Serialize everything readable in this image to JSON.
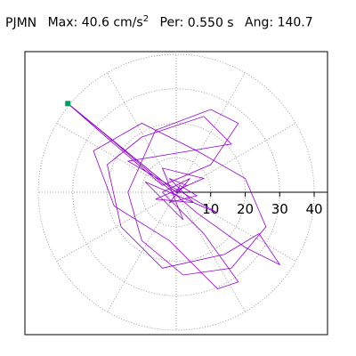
{
  "header": {
    "station": "PJMN",
    "max_label": "Max:",
    "max_value": "40.6",
    "max_unit": "cm/s",
    "max_unit_exp": "2",
    "per_label": "Per:",
    "per_value": "0.550 s",
    "ang_label": "Ang:",
    "ang_value": "140.7"
  },
  "chart_data": {
    "type": "line",
    "projection": "polar",
    "r_max": 40,
    "grid": true,
    "ticks": [
      10,
      20,
      30,
      40
    ],
    "tick_labels": [
      "10",
      "20",
      "30",
      "40"
    ],
    "peak": {
      "magnitude": 40.6,
      "angle_deg": 140.7
    },
    "colors": {
      "trace": "#9400d3",
      "peak_marker": "#009966",
      "grid": "#888888"
    },
    "series": [
      {
        "values": [
          {
            "x": 0,
            "y": 0
          },
          {
            "x": 3,
            "y": 2
          },
          {
            "x": -2,
            "y": 4
          },
          {
            "x": 5,
            "y": -3
          },
          {
            "x": -6,
            "y": -2
          },
          {
            "x": 8,
            "y": 4
          },
          {
            "x": -4,
            "y": 7
          },
          {
            "x": 2,
            "y": -8
          },
          {
            "x": -9,
            "y": 3
          },
          {
            "x": 12,
            "y": -6
          },
          {
            "x": -14,
            "y": 9
          },
          {
            "x": 16,
            "y": 14
          },
          {
            "x": 8,
            "y": 22
          },
          {
            "x": -10,
            "y": 16
          },
          {
            "x": -20,
            "y": 8
          },
          {
            "x": -16,
            "y": -10
          },
          {
            "x": -4,
            "y": -22
          },
          {
            "x": 14,
            "y": -18
          },
          {
            "x": 24,
            "y": -12
          },
          {
            "x": 30,
            "y": -21
          },
          {
            "x": 20,
            "y": -16
          },
          {
            "x": 6,
            "y": -6
          },
          {
            "x": -8,
            "y": 6
          },
          {
            "x": -22,
            "y": 18
          },
          {
            "x": -31.4,
            "y": 25.7
          },
          {
            "x": -18,
            "y": 14
          },
          {
            "x": -4,
            "y": 2
          },
          {
            "x": 10,
            "y": 8
          },
          {
            "x": 18,
            "y": 20
          },
          {
            "x": 10,
            "y": 24
          },
          {
            "x": -6,
            "y": 18
          },
          {
            "x": -14,
            "y": 0
          },
          {
            "x": -10,
            "y": -14
          },
          {
            "x": 2,
            "y": -24
          },
          {
            "x": 16,
            "y": -22
          },
          {
            "x": 26,
            "y": -10
          },
          {
            "x": 20,
            "y": 4
          },
          {
            "x": 6,
            "y": 12
          },
          {
            "x": -10,
            "y": 20
          },
          {
            "x": -24,
            "y": 12
          },
          {
            "x": -18,
            "y": -4
          },
          {
            "x": -2,
            "y": -14
          },
          {
            "x": 12,
            "y": -28
          },
          {
            "x": 18,
            "y": -26
          },
          {
            "x": 8,
            "y": -12
          },
          {
            "x": -4,
            "y": 0
          },
          {
            "x": 4,
            "y": 4
          },
          {
            "x": -2,
            "y": -3
          },
          {
            "x": 6,
            "y": -1
          },
          {
            "x": 1,
            "y": 2
          },
          {
            "x": 0,
            "y": 0
          }
        ]
      }
    ]
  }
}
